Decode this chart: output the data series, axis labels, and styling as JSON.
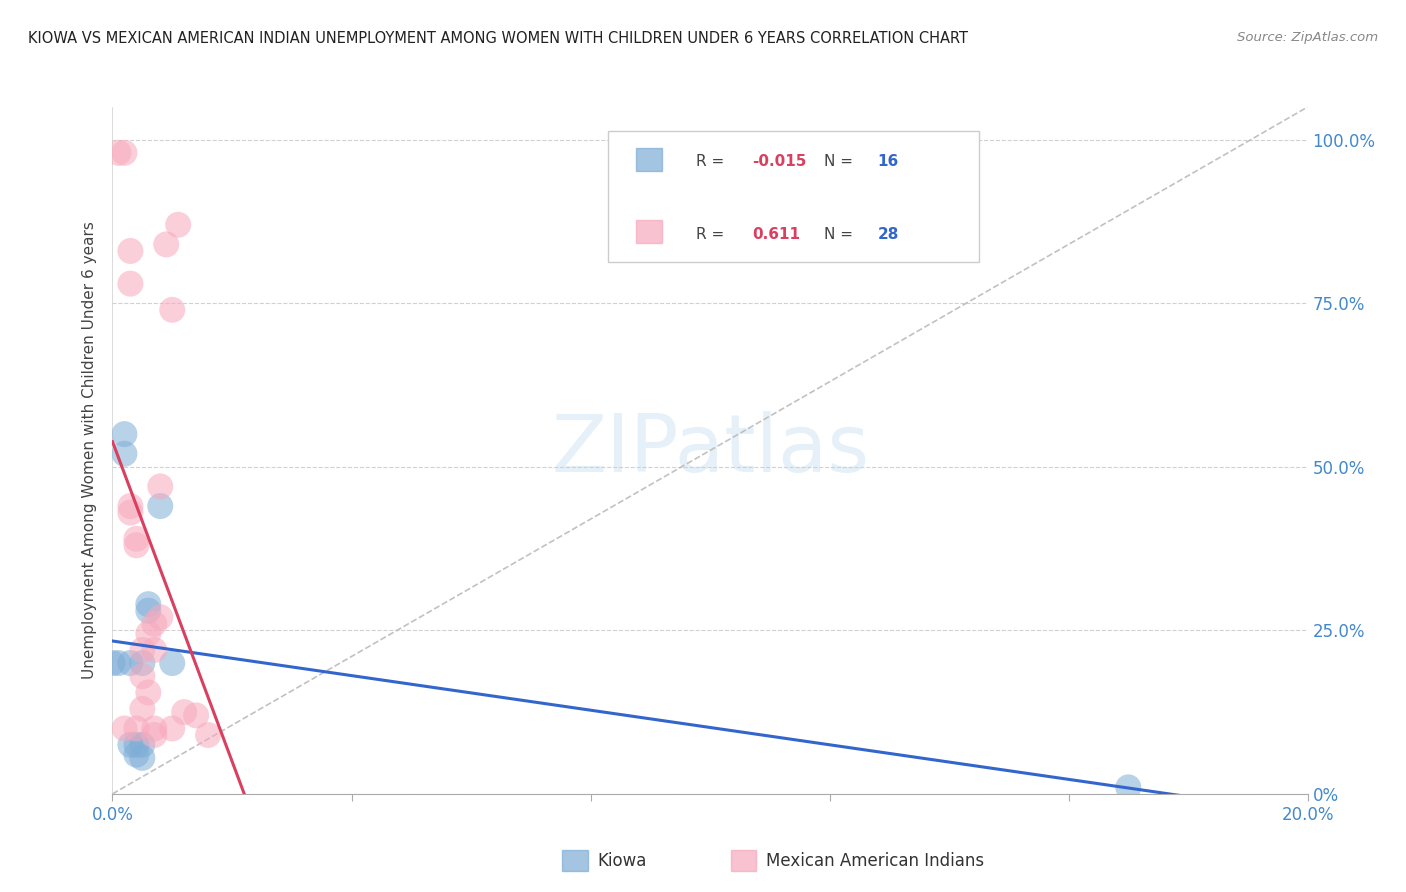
{
  "title": "KIOWA VS MEXICAN AMERICAN INDIAN UNEMPLOYMENT AMONG WOMEN WITH CHILDREN UNDER 6 YEARS CORRELATION CHART",
  "source": "Source: ZipAtlas.com",
  "ylabel": "Unemployment Among Women with Children Under 6 years",
  "x_min": 0.0,
  "x_max": 0.2,
  "y_min": 0.0,
  "y_max": 1.05,
  "kiowa_R": -0.015,
  "kiowa_N": 16,
  "mexican_R": 0.611,
  "mexican_N": 28,
  "kiowa_color": "#7eadd6",
  "mexican_color": "#f7a8bc",
  "kiowa_line_color": "#3366cc",
  "mexican_line_color": "#d94060",
  "background_color": "#ffffff",
  "grid_color": "#cccccc",
  "right_tick_color": "#4488cc",
  "kiowa_x": [
    0.0,
    0.001,
    0.002,
    0.002,
    0.003,
    0.003,
    0.004,
    0.004,
    0.005,
    0.005,
    0.005,
    0.006,
    0.006,
    0.008,
    0.01,
    0.17
  ],
  "kiowa_y": [
    0.2,
    0.2,
    0.55,
    0.52,
    0.2,
    0.075,
    0.075,
    0.06,
    0.2,
    0.075,
    0.055,
    0.29,
    0.28,
    0.44,
    0.2,
    0.01
  ],
  "mexican_x": [
    0.001,
    0.002,
    0.002,
    0.003,
    0.003,
    0.003,
    0.003,
    0.004,
    0.004,
    0.004,
    0.005,
    0.005,
    0.005,
    0.006,
    0.006,
    0.007,
    0.007,
    0.007,
    0.007,
    0.008,
    0.008,
    0.009,
    0.01,
    0.01,
    0.011,
    0.012,
    0.014,
    0.016
  ],
  "mexican_y": [
    0.98,
    0.98,
    0.1,
    0.83,
    0.78,
    0.44,
    0.43,
    0.39,
    0.38,
    0.1,
    0.22,
    0.18,
    0.13,
    0.245,
    0.155,
    0.26,
    0.22,
    0.1,
    0.09,
    0.47,
    0.27,
    0.84,
    0.74,
    0.1,
    0.87,
    0.125,
    0.12,
    0.09
  ],
  "ytick_values": [
    0.0,
    0.25,
    0.5,
    0.75,
    1.0
  ],
  "ytick_labels_right": [
    "0%",
    "25.0%",
    "50.0%",
    "75.0%",
    "100.0%"
  ],
  "xtick_values": [
    0.0,
    0.04,
    0.08,
    0.12,
    0.16,
    0.2
  ],
  "xtick_labels": [
    "0.0%",
    "",
    "",
    "",
    "",
    "20.0%"
  ],
  "legend_R1": "-0.015",
  "legend_N1": "16",
  "legend_R2": "0.611",
  "legend_N2": "28",
  "watermark": "ZIPatlas",
  "label_kiowa": "Kiowa",
  "label_mexican": "Mexican American Indians"
}
